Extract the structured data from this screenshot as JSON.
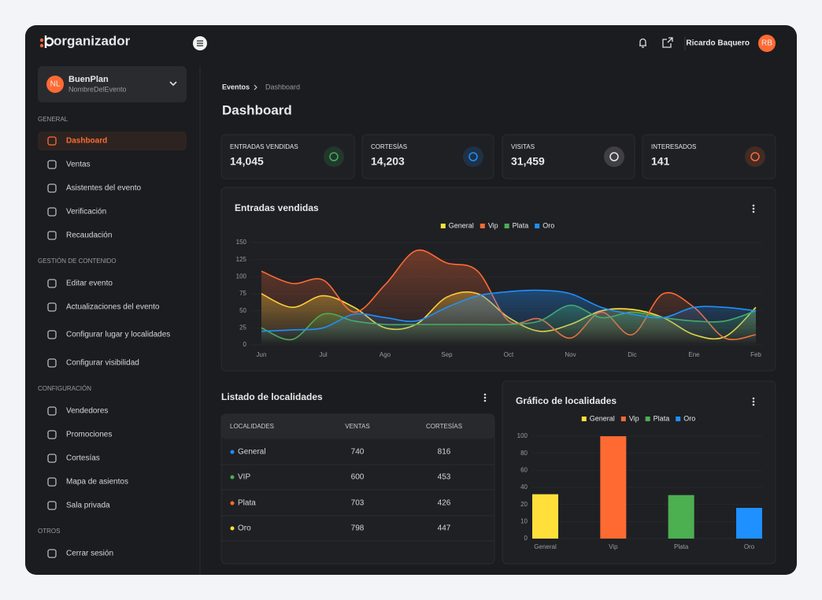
{
  "app": {
    "brand": "organizador",
    "user_name": "Ricardo Baquero",
    "user_initials": "RB"
  },
  "event": {
    "initials": "NL",
    "name": "BuenPlan",
    "subtitle": "NombreDelEvento"
  },
  "nav": [
    {
      "heading": "GENERAL",
      "items": [
        {
          "label": "Dashboard",
          "active": true
        },
        "Ventas",
        "Asistentes del evento",
        "Verificación",
        "Recaudación"
      ]
    },
    {
      "heading": "GESTIÓN DE CONTENIDO",
      "items": [
        "Editar evento",
        "Actualizaciones del evento",
        "Configurar lugar y localidades",
        "Configurar visibilidad"
      ]
    },
    {
      "heading": "CONFIGURACIÓN",
      "items": [
        "Vendedores",
        "Promociones",
        "Cortesías",
        "Mapa de asientos",
        "Sala privada"
      ]
    },
    {
      "heading": "OTROS",
      "items": [
        "Cerrar sesión"
      ]
    }
  ],
  "breadcrumb": [
    "Eventos",
    "Dashboard"
  ],
  "page_title": "Dashboard",
  "stats": [
    {
      "label": "ENTRADAS VENDIDAS",
      "value": "14,045",
      "color": "#3bb25a"
    },
    {
      "label": "CORTESÍAS",
      "value": "14,203",
      "color": "#1e90ff"
    },
    {
      "label": "VISITAS",
      "value": "31,459",
      "color": "#e8e8ea"
    },
    {
      "label": "INTERESADOS",
      "value": "141",
      "color": "#ff6a33"
    }
  ],
  "chart_data": [
    {
      "type": "line",
      "title": "Entradas vendidas",
      "categories": [
        "Jun",
        null,
        "Jul",
        null,
        "Ago",
        null,
        "Sep",
        null,
        "Oct",
        null,
        "Nov",
        null,
        "Dic",
        null,
        "Ene",
        null,
        "Feb"
      ],
      "series": [
        {
          "name": "General",
          "color": "#ffe03a",
          "values": [
            75,
            55,
            72,
            55,
            25,
            30,
            70,
            75,
            40,
            20,
            30,
            50,
            52,
            40,
            15,
            12,
            55
          ]
        },
        {
          "name": "Vip",
          "color": "#ff6a33",
          "values": [
            108,
            90,
            95,
            48,
            88,
            138,
            120,
            108,
            35,
            38,
            10,
            48,
            15,
            75,
            55,
            10,
            15
          ]
        },
        {
          "name": "Plata",
          "color": "#4caf50",
          "values": [
            25,
            8,
            45,
            35,
            30,
            30,
            30,
            30,
            30,
            35,
            58,
            40,
            48,
            40,
            35,
            35,
            50
          ]
        },
        {
          "name": "Oro",
          "color": "#1e90ff",
          "values": [
            20,
            22,
            25,
            45,
            40,
            35,
            55,
            72,
            78,
            80,
            75,
            55,
            45,
            40,
            55,
            55,
            50
          ]
        }
      ],
      "ylim": [
        0,
        150
      ],
      "yticks": [
        0,
        25,
        50,
        75,
        100,
        125,
        150
      ],
      "grid": true
    },
    {
      "type": "bar",
      "title": "Gráfico de localidades",
      "categories": [
        "General",
        "Vip",
        "Plata",
        "Oro"
      ],
      "values": [
        32,
        100,
        31,
        18
      ],
      "colors": [
        "#ffe03a",
        "#ff6a33",
        "#4caf50",
        "#1e90ff"
      ],
      "ylim": [
        0,
        100
      ],
      "yticks": [
        0,
        10,
        20,
        40,
        60,
        80,
        100
      ],
      "grid": true
    }
  ],
  "locations_table": {
    "title": "Listado de localidades",
    "columns": [
      "LOCALIDADES",
      "VENTAS",
      "CORTESÍAS"
    ],
    "rows": [
      [
        "General",
        740,
        816
      ],
      [
        "VIP",
        600,
        453
      ],
      [
        "Plata",
        703,
        426
      ],
      [
        "Oro",
        798,
        447
      ]
    ],
    "dot_colors": [
      "#1e90ff",
      "#4caf50",
      "#ff6a33",
      "#ffe03a"
    ]
  }
}
